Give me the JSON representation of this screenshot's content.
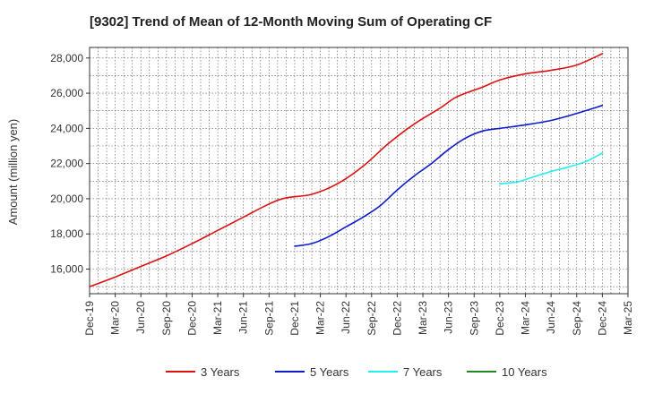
{
  "chart_data": {
    "type": "line",
    "title": "[9302]  Trend of Mean of 12-Month Moving Sum of Operating CF",
    "xlabel": "",
    "ylabel": "Amount (million yen)",
    "ylim": [
      14600,
      28600
    ],
    "yticks": [
      16000,
      18000,
      20000,
      22000,
      24000,
      26000,
      28000
    ],
    "ytick_labels": [
      "16,000",
      "18,000",
      "20,000",
      "22,000",
      "24,000",
      "26,000",
      "28,000"
    ],
    "xlim_months": [
      0,
      63
    ],
    "xticks": [
      {
        "m": 0,
        "label": "Dec-19"
      },
      {
        "m": 3,
        "label": "Mar-20"
      },
      {
        "m": 6,
        "label": "Jun-20"
      },
      {
        "m": 9,
        "label": "Sep-20"
      },
      {
        "m": 12,
        "label": "Dec-20"
      },
      {
        "m": 15,
        "label": "Mar-21"
      },
      {
        "m": 18,
        "label": "Jun-21"
      },
      {
        "m": 21,
        "label": "Sep-21"
      },
      {
        "m": 24,
        "label": "Dec-21"
      },
      {
        "m": 27,
        "label": "Mar-22"
      },
      {
        "m": 30,
        "label": "Jun-22"
      },
      {
        "m": 33,
        "label": "Sep-22"
      },
      {
        "m": 36,
        "label": "Dec-22"
      },
      {
        "m": 39,
        "label": "Mar-23"
      },
      {
        "m": 42,
        "label": "Jun-23"
      },
      {
        "m": 45,
        "label": "Sep-23"
      },
      {
        "m": 48,
        "label": "Dec-23"
      },
      {
        "m": 51,
        "label": "Mar-24"
      },
      {
        "m": 54,
        "label": "Jun-24"
      },
      {
        "m": 57,
        "label": "Sep-24"
      },
      {
        "m": 60,
        "label": "Dec-24"
      },
      {
        "m": 63,
        "label": "Mar-25"
      }
    ],
    "grid": true,
    "legend_position": "bottom",
    "series": [
      {
        "name": "3 Years",
        "color": "#dd1111",
        "points": [
          [
            0,
            15000
          ],
          [
            3,
            15550
          ],
          [
            6,
            16150
          ],
          [
            9,
            16750
          ],
          [
            12,
            17450
          ],
          [
            15,
            18200
          ],
          [
            18,
            18950
          ],
          [
            21,
            19700
          ],
          [
            23,
            20050
          ],
          [
            26,
            20250
          ],
          [
            29,
            20850
          ],
          [
            32,
            21850
          ],
          [
            35,
            23150
          ],
          [
            38,
            24250
          ],
          [
            41,
            25150
          ],
          [
            43,
            25800
          ],
          [
            46,
            26350
          ],
          [
            48,
            26750
          ],
          [
            51,
            27100
          ],
          [
            54,
            27300
          ],
          [
            57,
            27600
          ],
          [
            60,
            28250
          ]
        ]
      },
      {
        "name": "5 Years",
        "color": "#0c1ccc",
        "points": [
          [
            24,
            17300
          ],
          [
            26,
            17450
          ],
          [
            28,
            17850
          ],
          [
            30,
            18400
          ],
          [
            32,
            18950
          ],
          [
            34,
            19600
          ],
          [
            36,
            20500
          ],
          [
            38,
            21300
          ],
          [
            40,
            22000
          ],
          [
            42,
            22800
          ],
          [
            44,
            23450
          ],
          [
            46,
            23850
          ],
          [
            48,
            24000
          ],
          [
            51,
            24200
          ],
          [
            54,
            24450
          ],
          [
            57,
            24850
          ],
          [
            60,
            25300
          ]
        ]
      },
      {
        "name": "7 Years",
        "color": "#22eeee",
        "points": [
          [
            48,
            20850
          ],
          [
            50,
            20950
          ],
          [
            52,
            21250
          ],
          [
            54,
            21550
          ],
          [
            56,
            21800
          ],
          [
            58,
            22100
          ],
          [
            60,
            22600
          ]
        ]
      },
      {
        "name": "10 Years",
        "color": "#228822",
        "points": []
      }
    ]
  }
}
